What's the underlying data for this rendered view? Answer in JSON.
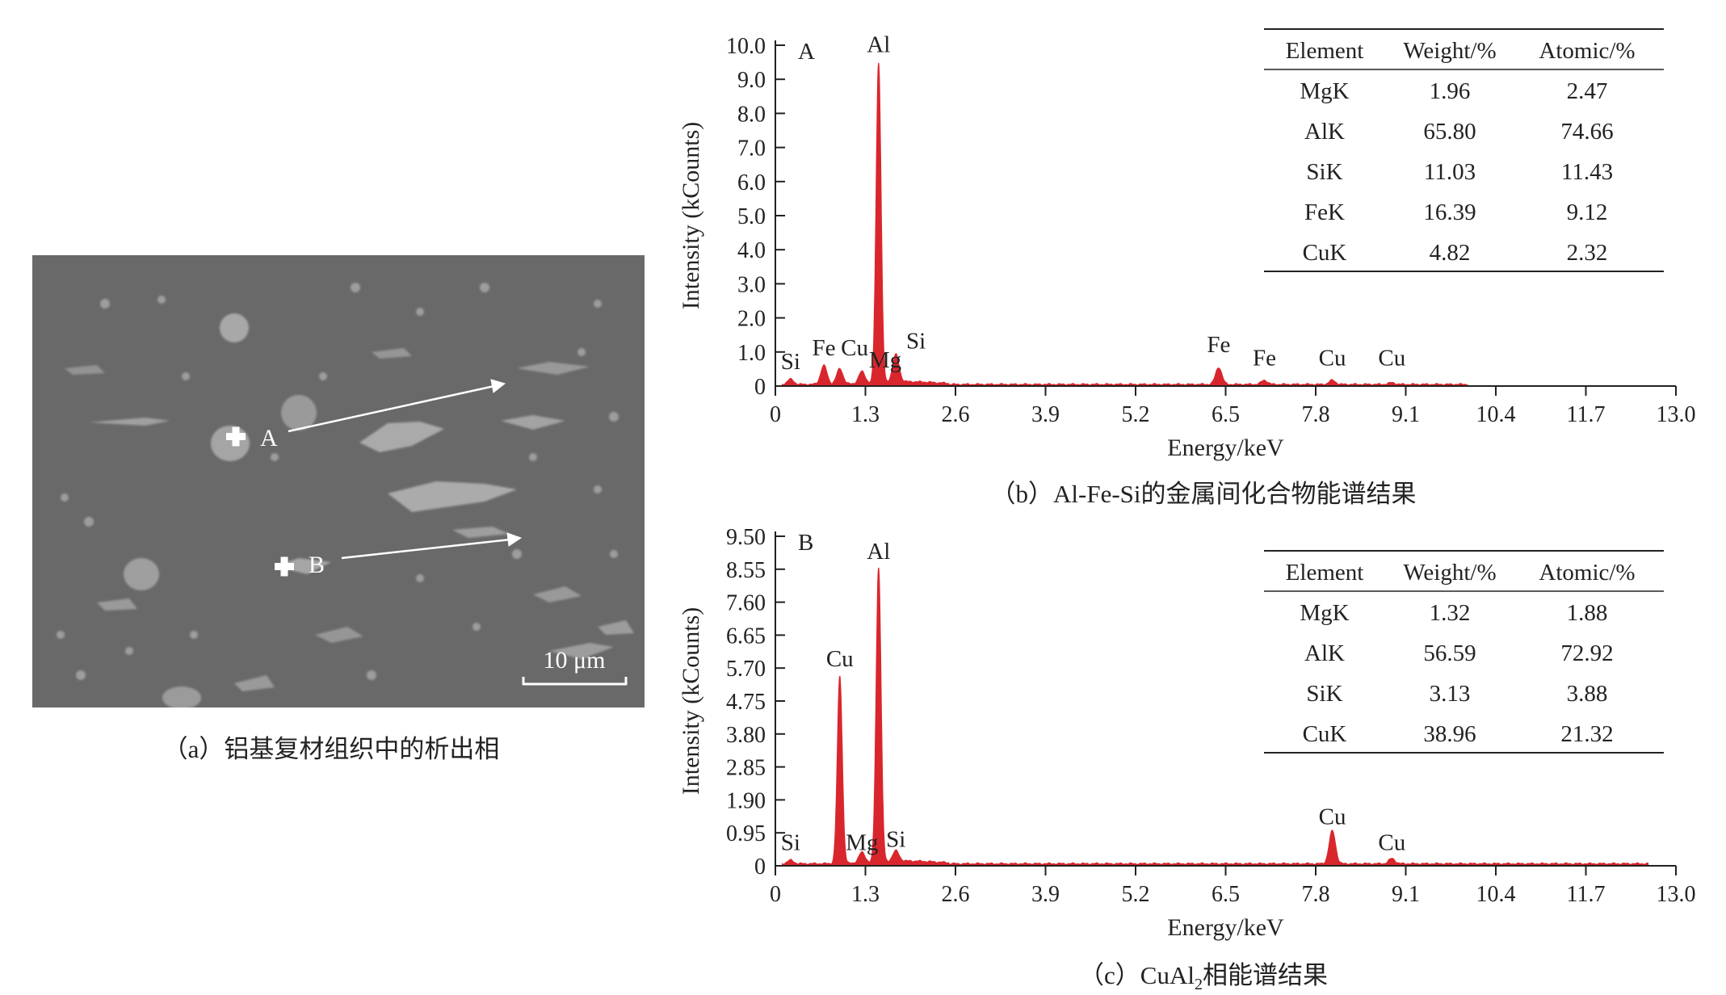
{
  "panel_a": {
    "caption": "（a）铝基复材组织中的析出相",
    "point_a_label": "A",
    "point_b_label": "B",
    "scale_bar_label": "10 μm"
  },
  "chart_data": [
    {
      "type": "area",
      "panel_letter": "A",
      "caption": "（b）Al-Fe-Si的金属间化合物能谱结果",
      "xlabel": "Energy/keV",
      "ylabel": "Intensity (kCounts)",
      "xlim": [
        0,
        13.0
      ],
      "ylim": [
        0,
        10.0
      ],
      "xticks": [
        "0",
        "1.3",
        "2.6",
        "3.9",
        "5.2",
        "6.5",
        "7.8",
        "9.1",
        "10.4",
        "11.7",
        "13.0"
      ],
      "yticks": [
        "0",
        "1.0",
        "2.0",
        "3.0",
        "4.0",
        "5.0",
        "6.0",
        "7.0",
        "8.0",
        "9.0",
        "10.0"
      ],
      "series_color": "#d9262c",
      "baseline": 0.05,
      "spectrum_end": 10.0,
      "peaks": [
        {
          "label": "Si",
          "energy": 0.22,
          "height": 0.15,
          "label_y": 0.5
        },
        {
          "label": "Fe",
          "energy": 0.7,
          "height": 0.55,
          "label_y": 0.9
        },
        {
          "label": "Cu",
          "energy": 0.93,
          "height": 0.45,
          "label_y": 0.9
        },
        {
          "label": "Mg",
          "energy": 1.25,
          "height": 0.35,
          "label_y": 0.55
        },
        {
          "label": "Al",
          "energy": 1.49,
          "height": 9.4,
          "label_y": 9.8
        },
        {
          "label": "Si",
          "energy": 1.74,
          "height": 0.8,
          "label_y": 1.1
        },
        {
          "label": "Fe",
          "energy": 6.4,
          "height": 0.5,
          "label_y": 1.0
        },
        {
          "label": "Fe",
          "energy": 7.06,
          "height": 0.12,
          "label_y": 0.6
        },
        {
          "label": "Cu",
          "energy": 8.04,
          "height": 0.12,
          "label_y": 0.6
        },
        {
          "label": "Cu",
          "energy": 8.9,
          "height": 0.05,
          "label_y": 0.6
        }
      ],
      "table": {
        "headers": [
          "Element",
          "Weight/%",
          "Atomic/%"
        ],
        "rows": [
          [
            "MgK",
            "1.96",
            "2.47"
          ],
          [
            "AlK",
            "65.80",
            "74.66"
          ],
          [
            "SiK",
            "11.03",
            "11.43"
          ],
          [
            "FeK",
            "16.39",
            "9.12"
          ],
          [
            "CuK",
            "4.82",
            "2.32"
          ]
        ]
      }
    },
    {
      "type": "area",
      "panel_letter": "B",
      "caption_prefix": "（c）CuAl",
      "caption_sub": "2",
      "caption_suffix": "相能谱结果",
      "xlabel": "Energy/keV",
      "ylabel": "Intensity (kCounts)",
      "xlim": [
        0,
        13.0
      ],
      "ylim": [
        0,
        9.5
      ],
      "xticks": [
        "0",
        "1.3",
        "2.6",
        "3.9",
        "5.2",
        "6.5",
        "7.8",
        "9.1",
        "10.4",
        "11.7",
        "13.0"
      ],
      "yticks": [
        "0",
        "0.95",
        "1.90",
        "2.85",
        "3.80",
        "4.75",
        "5.70",
        "6.65",
        "7.60",
        "8.55",
        "9.50"
      ],
      "series_color": "#d9262c",
      "baseline": 0.06,
      "spectrum_end": 12.6,
      "peaks": [
        {
          "label": "Si",
          "energy": 0.22,
          "height": 0.1,
          "label_y": 0.45
        },
        {
          "label": "Cu",
          "energy": 0.93,
          "height": 5.4,
          "label_y": 5.75
        },
        {
          "label": "Mg",
          "energy": 1.25,
          "height": 0.3,
          "label_y": 0.45
        },
        {
          "label": "Al",
          "energy": 1.49,
          "height": 8.5,
          "label_y": 8.85
        },
        {
          "label": "Si",
          "energy": 1.74,
          "height": 0.3,
          "label_y": 0.55
        },
        {
          "label": "Cu",
          "energy": 8.04,
          "height": 0.95,
          "label_y": 1.2
        },
        {
          "label": "Cu",
          "energy": 8.9,
          "height": 0.15,
          "label_y": 0.45
        }
      ],
      "table": {
        "headers": [
          "Element",
          "Weight/%",
          "Atomic/%"
        ],
        "rows": [
          [
            "MgK",
            "1.32",
            "1.88"
          ],
          [
            "AlK",
            "56.59",
            "72.92"
          ],
          [
            "SiK",
            "3.13",
            "3.88"
          ],
          [
            "CuK",
            "38.96",
            "21.32"
          ]
        ]
      }
    }
  ]
}
